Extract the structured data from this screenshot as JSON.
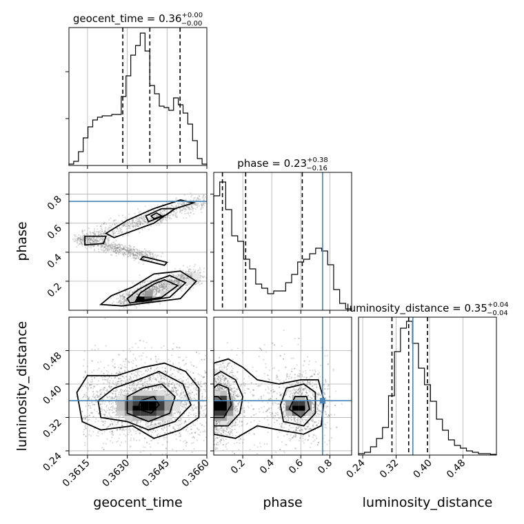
{
  "chart_data": {
    "type": "corner",
    "colors": {
      "truth": "#4682b4",
      "hist": "#000000",
      "grid": "#b0b0b0",
      "samples": "#7f7f7f"
    },
    "parameters": [
      {
        "name": "geocent_time",
        "range": [
          0.3608,
          0.366
        ],
        "ticks": [
          0.3615,
          0.363,
          0.3645,
          0.366
        ],
        "tick_labels": [
          "0.3615",
          "0.3630",
          "0.3645",
          "0.3660"
        ],
        "title_main": "geocent_time = 0.36",
        "title_plus": "+0.00",
        "title_minus": "−0.00",
        "quantiles": [
          0.36283,
          0.36385,
          0.36499
        ],
        "truth": null,
        "hist": [
          0.01,
          0.03,
          0.1,
          0.2,
          0.28,
          0.33,
          0.35,
          0.36,
          0.36,
          0.37,
          0.37,
          0.5,
          0.65,
          0.8,
          0.87,
          0.96,
          0.83,
          0.58,
          0.52,
          0.43,
          0.42,
          0.4,
          0.49,
          0.44,
          0.38,
          0.3,
          0.18,
          0.05,
          0.01
        ]
      },
      {
        "name": "phase",
        "range": [
          0.0,
          0.95
        ],
        "ticks": [
          0.2,
          0.4,
          0.6,
          0.8
        ],
        "tick_labels": [
          "0.2",
          "0.4",
          "0.6",
          "0.8"
        ],
        "title_main": "phase = 0.23",
        "title_plus": "+0.38",
        "title_minus": "−0.16",
        "quantiles": [
          0.06,
          0.22,
          0.61
        ],
        "truth": 0.75,
        "hist": [
          0.83,
          0.93,
          0.73,
          0.54,
          0.5,
          0.37,
          0.3,
          0.19,
          0.16,
          0.12,
          0.14,
          0.14,
          0.2,
          0.26,
          0.35,
          0.37,
          0.41,
          0.45,
          0.43,
          0.33,
          0.15,
          0.05,
          0.01
        ]
      },
      {
        "name": "luminosity_distance",
        "range": [
          0.23,
          0.56
        ],
        "ticks": [
          0.24,
          0.32,
          0.4,
          0.48
        ],
        "tick_labels": [
          "0.24",
          "0.32",
          "0.40",
          "0.48"
        ],
        "title_main": "luminosity_distance = 0.35",
        "title_plus": "+0.04",
        "title_minus": "−0.04",
        "quantiles": [
          0.31,
          0.35,
          0.395
        ],
        "truth": 0.36,
        "hist": [
          0.01,
          0.02,
          0.06,
          0.12,
          0.2,
          0.43,
          0.75,
          0.92,
          0.97,
          0.81,
          0.63,
          0.51,
          0.39,
          0.26,
          0.18,
          0.11,
          0.07,
          0.05,
          0.03,
          0.02,
          0.01,
          0.01,
          0.005
        ]
      }
    ],
    "truths": {
      "phase": 0.75,
      "luminosity_distance": 0.36
    },
    "grid": true
  }
}
